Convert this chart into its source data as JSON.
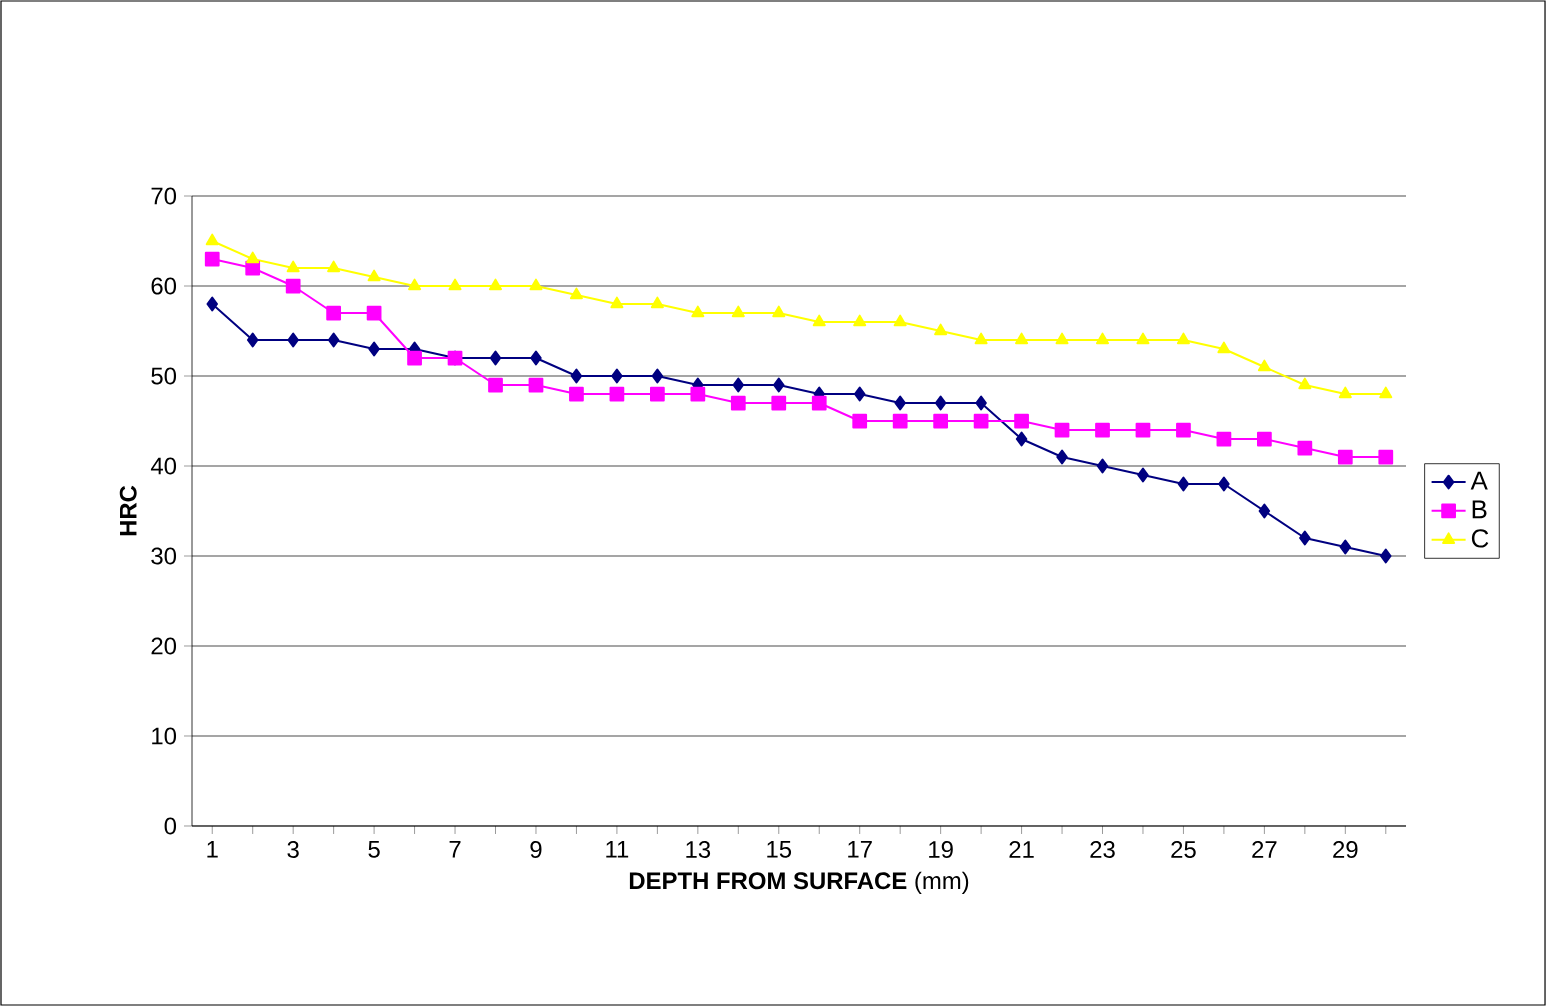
{
  "chart_data": {
    "type": "line",
    "xlabel": "**DEPTH FROM SURFACE** (mm)",
    "ylabel": "HRC",
    "categories": [
      "1",
      null,
      "3",
      null,
      "5",
      null,
      "7",
      null,
      "9",
      null,
      "11",
      null,
      "13",
      null,
      "15",
      null,
      "17",
      null,
      "19",
      null,
      "21",
      null,
      "23",
      null,
      "25",
      null,
      "27",
      null,
      "29",
      null
    ],
    "series": [
      {
        "name": "A",
        "color": "#000080",
        "marker": "diamond",
        "values": [
          58,
          54,
          54,
          54,
          53,
          53,
          52,
          52,
          52,
          50,
          50,
          50,
          49,
          49,
          49,
          48,
          48,
          47,
          47,
          47,
          43,
          41,
          40,
          39,
          38,
          38,
          35,
          32,
          31,
          30
        ]
      },
      {
        "name": "B",
        "color": "#ff00ff",
        "marker": "square",
        "values": [
          63,
          62,
          60,
          57,
          57,
          52,
          52,
          49,
          49,
          48,
          48,
          48,
          48,
          47,
          47,
          47,
          45,
          45,
          45,
          45,
          45,
          44,
          44,
          44,
          44,
          43,
          43,
          42,
          41,
          41
        ]
      },
      {
        "name": "C",
        "color": "#ffff00",
        "marker": "triangle",
        "values": [
          65,
          63,
          62,
          62,
          61,
          60,
          60,
          60,
          60,
          59,
          58,
          58,
          57,
          57,
          57,
          56,
          56,
          56,
          55,
          54,
          54,
          54,
          54,
          54,
          54,
          53,
          51,
          49,
          48,
          48
        ]
      }
    ],
    "ylim": [
      0,
      70
    ],
    "yticks": [
      0,
      10,
      20,
      30,
      40,
      50,
      60,
      70
    ],
    "grid": "y",
    "legend": "right"
  }
}
